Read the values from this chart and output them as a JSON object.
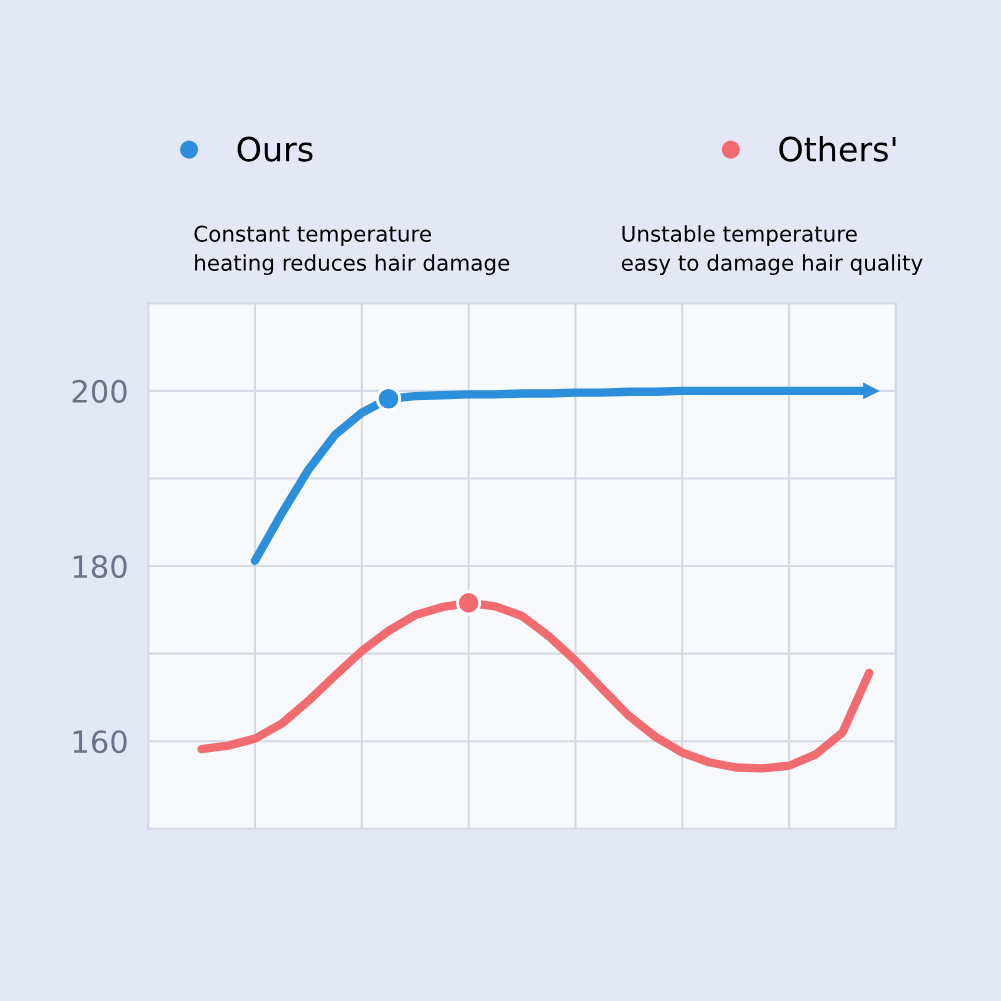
{
  "chart_data": {
    "type": "line",
    "tick_labels": "y",
    "grid": true,
    "legend": "top",
    "line_style": "solid",
    "categories": [
      null,
      null,
      null,
      null,
      null,
      null,
      null,
      null,
      null,
      null,
      null,
      null,
      null,
      null,
      null,
      null,
      null,
      null,
      null,
      null,
      null,
      null,
      null,
      null,
      null,
      null,
      null,
      null,
      null
    ],
    "ylim": [
      150,
      210
    ],
    "yticks": [
      {
        "value": 150,
        "label": null
      },
      160,
      {
        "value": 170,
        "label": null
      },
      180,
      {
        "value": 190,
        "label": null
      },
      200,
      {
        "value": 210,
        "label": null
      }
    ],
    "annotations": [
      "Constant temperature\nheating reduces hair damage",
      "Unstable temperature\neasy to damage hair quality"
    ],
    "series": [
      {
        "name": "Ours",
        "color": "#2b8fdc",
        "marker": "none",
        "values": [
          null,
          null,
          null,
          null,
          180.6,
          186,
          191,
          195,
          197.5,
          199.1,
          199.4,
          199.5,
          199.6,
          199.6,
          199.7,
          199.7,
          199.8,
          199.8,
          199.9,
          199.9,
          200,
          200,
          200,
          200,
          200,
          200,
          200,
          200,
          null
        ]
      },
      {
        "name": "Others'",
        "color": "#f26b70",
        "marker": "none",
        "values": [
          null,
          null,
          159.1,
          159.5,
          160.3,
          162,
          164.6,
          167.5,
          170.3,
          172.6,
          174.4,
          175.3,
          175.8,
          175.4,
          174.3,
          172,
          169.2,
          166,
          162.9,
          160.5,
          158.7,
          157.6,
          157,
          156.9,
          157.2,
          158.5,
          161,
          167.8,
          null
        ]
      },
      {
        "type": "scatter",
        "color": "#2b8fdc",
        "marker": "circle",
        "values": [
          null,
          null,
          null,
          null,
          null,
          null,
          null,
          null,
          null,
          199.1,
          null,
          null,
          null,
          null,
          null,
          null,
          null,
          null,
          null,
          null,
          null,
          null,
          null,
          null,
          null,
          null,
          null,
          null,
          null
        ]
      },
      {
        "type": "scatter",
        "color": "#f26b70",
        "marker": "circle",
        "values": [
          null,
          null,
          null,
          null,
          null,
          null,
          null,
          null,
          null,
          null,
          null,
          null,
          175.8,
          null,
          null,
          null,
          null,
          null,
          null,
          null,
          null,
          null,
          null,
          null,
          null,
          null,
          null,
          null,
          null
        ]
      }
    ]
  }
}
